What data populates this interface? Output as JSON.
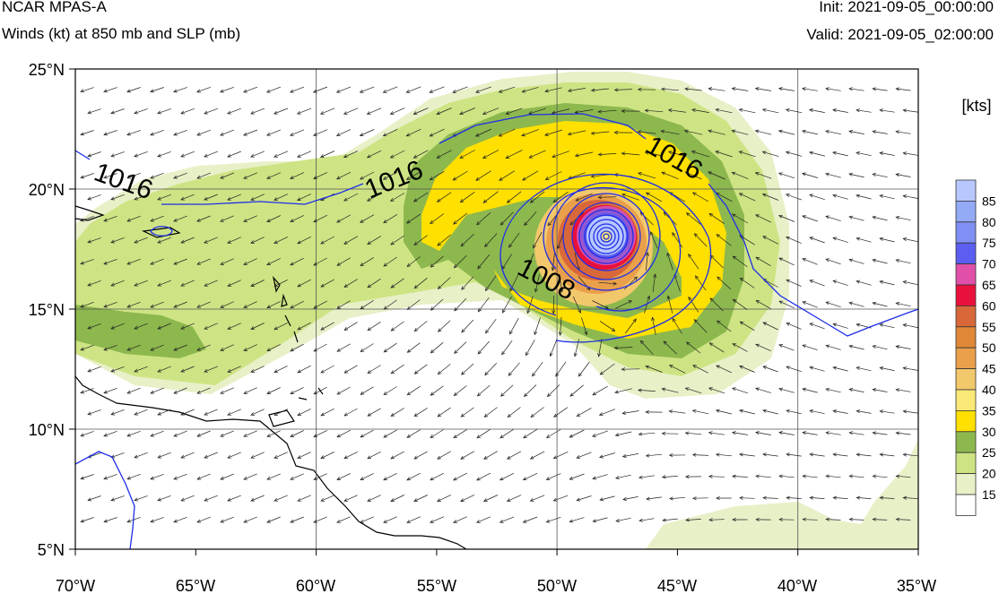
{
  "header": {
    "model": "NCAR MPAS-A",
    "fields": "Winds (kt) at 850 mb and SLP (mb)",
    "init": "Init: 2021-09-05_00:00:00",
    "valid": "Valid: 2021-09-05_02:00:00"
  },
  "map": {
    "lon_range": [
      -70,
      -35
    ],
    "lat_range": [
      5,
      25
    ],
    "gridlines": true,
    "lon_labels": [
      "70°W",
      "65°W",
      "60°W",
      "55°W",
      "50°W",
      "45°W",
      "40°W",
      "35°W"
    ],
    "lat_labels": [
      "25°N",
      "20°N",
      "15°N",
      "10°N",
      "5°N"
    ],
    "isobar_color": "#1f2ee8",
    "isobar_labels": [
      "1016",
      "1016",
      "1016",
      "1008"
    ],
    "storm_center": {
      "lon": -48.2,
      "lat": 18.0
    }
  },
  "colorbar": {
    "title": "[kts]",
    "levels": [
      "85",
      "80",
      "75",
      "70",
      "65",
      "60",
      "55",
      "50",
      "45",
      "40",
      "35",
      "30",
      "25",
      "20",
      "15"
    ],
    "colors": [
      "#b8c8ff",
      "#93aaf5",
      "#7f8ff3",
      "#5b5ef0",
      "#e050a8",
      "#e8103c",
      "#d8683a",
      "#e08838",
      "#eaa04a",
      "#f2c86c",
      "#fae878",
      "#ffe000",
      "#8db84e",
      "#cee484",
      "#e8f0c8",
      "#ffffff"
    ]
  }
}
